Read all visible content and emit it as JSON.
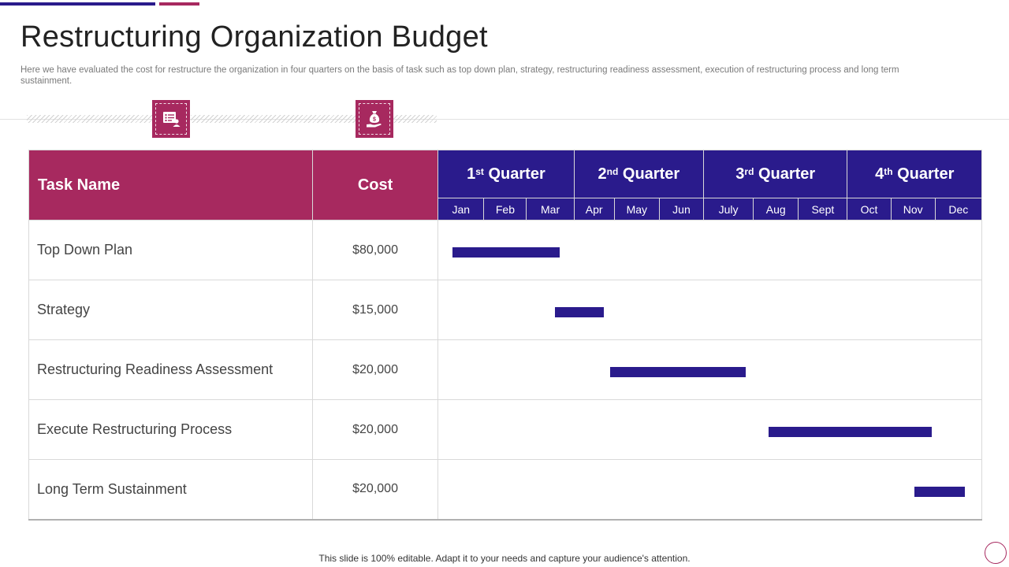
{
  "slide": {
    "title": "Restructuring Organization Budget",
    "subtitle": "Here we have evaluated the cost for restructure the organization in four quarters on the basis of task such as top down plan, strategy, restructuring readiness assessment, execution of restructuring process and long term sustainment.",
    "footer": "This slide is 100% editable. Adapt it to your needs and capture your audience's attention."
  },
  "icons": [
    {
      "name": "task-list-icon"
    },
    {
      "name": "money-bag-hand-icon"
    }
  ],
  "table": {
    "task_header": "Task Name",
    "cost_header": "Cost",
    "quarters": [
      {
        "num": "1",
        "sup": "st",
        "label": "Quarter"
      },
      {
        "num": "2",
        "sup": "nd",
        "label": "Quarter"
      },
      {
        "num": "3",
        "sup": "rd",
        "label": "Quarter"
      },
      {
        "num": "4",
        "sup": "th",
        "label": "Quarter"
      }
    ],
    "months": [
      "Jan",
      "Feb",
      "Mar",
      "Apr",
      "May",
      "Jun",
      "July",
      "Aug",
      "Sept",
      "Oct",
      "Nov",
      "Dec"
    ],
    "rows": [
      {
        "task": "Top Down Plan",
        "cost": "$80,000",
        "start_month": 0.3,
        "end_month": 2.7
      },
      {
        "task": "Strategy",
        "cost": "$15,000",
        "start_month": 2.6,
        "end_month": 3.75
      },
      {
        "task": "Restructuring Readiness Assessment",
        "cost": "$20,000",
        "start_month": 3.9,
        "end_month": 6.85
      },
      {
        "task": "Execute Restructuring Process",
        "cost": "$20,000",
        "start_month": 7.35,
        "end_month": 10.95
      },
      {
        "task": "Long Term Sustainment",
        "cost": "$20,000",
        "start_month": 10.55,
        "end_month": 11.65
      }
    ]
  },
  "colors": {
    "accent_pink": "#a7295f",
    "accent_navy": "#2a1b8c"
  }
}
